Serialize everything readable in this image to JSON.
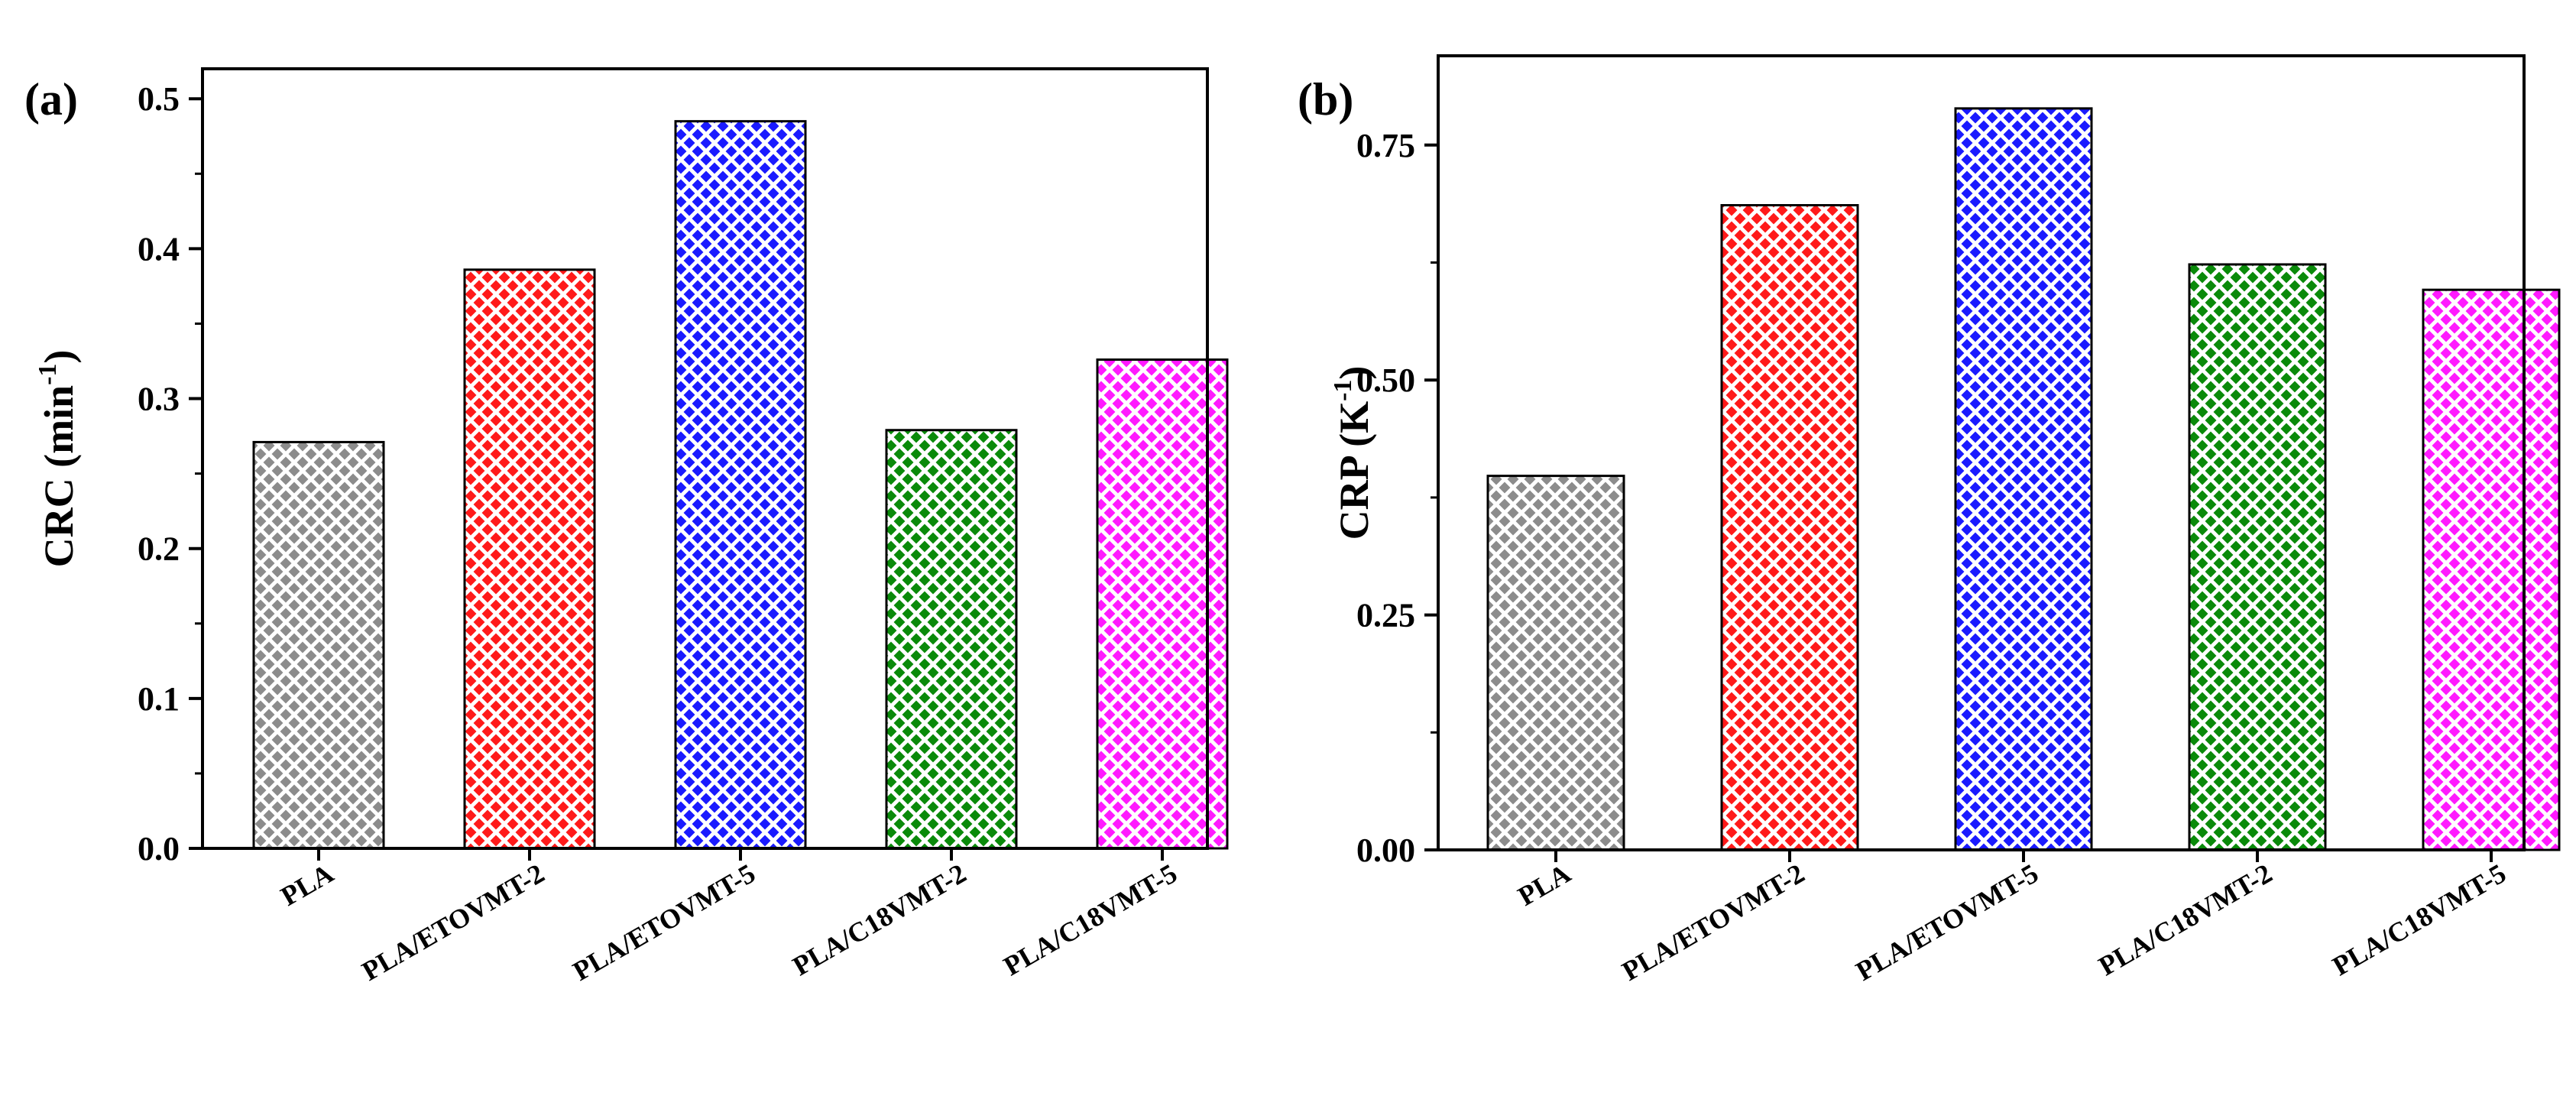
{
  "chart_data": [
    {
      "type": "bar",
      "panel_label": "(a)",
      "title": "",
      "xlabel": "",
      "ylabel": "CRC (min",
      "ylabel_sup": "-1",
      "ylabel_end": ")",
      "categories": [
        "PLA",
        "PLA/ETOVMT-2",
        "PLA/ETOVMT-5",
        "PLA/C18VMT-2",
        "PLA/C18VMT-5"
      ],
      "values": [
        0.271,
        0.386,
        0.485,
        0.279,
        0.326
      ],
      "colors": [
        "#8c8c8c",
        "#ff1a1a",
        "#1a1aff",
        "#0a8a0a",
        "#ff1aff"
      ],
      "ylim": [
        0,
        0.52
      ],
      "yticks": [
        0.0,
        0.1,
        0.2,
        0.3,
        0.4,
        0.5
      ],
      "ytick_labels": [
        "0.0",
        "0.1",
        "0.2",
        "0.3",
        "0.4",
        "0.5"
      ],
      "pattern": "crosshatch",
      "grid": false
    },
    {
      "type": "bar",
      "panel_label": "(b)",
      "title": "",
      "xlabel": "",
      "ylabel": "CRP (K",
      "ylabel_sup": "-1",
      "ylabel_end": ")",
      "categories": [
        "PLA",
        "PLA/ETOVMT-2",
        "PLA/ETOVMT-5",
        "PLA/C18VMT-2",
        "PLA/C18VMT-5"
      ],
      "values": [
        0.398,
        0.686,
        0.789,
        0.623,
        0.596
      ],
      "colors": [
        "#8c8c8c",
        "#ff1a1a",
        "#1a1aff",
        "#0a8a0a",
        "#ff1aff"
      ],
      "ylim": [
        0,
        0.845
      ],
      "yticks": [
        0.0,
        0.25,
        0.5,
        0.75
      ],
      "ytick_labels": [
        "0.00",
        "0.25",
        "0.50",
        "0.75"
      ],
      "pattern": "crosshatch",
      "grid": false
    }
  ]
}
